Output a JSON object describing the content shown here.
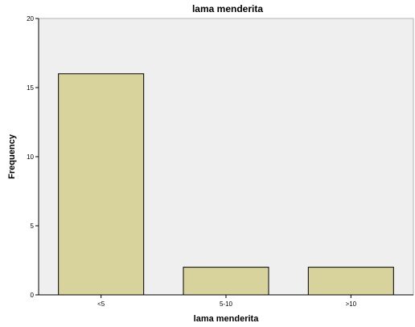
{
  "chart_data": {
    "type": "bar",
    "title": "lama menderita",
    "xlabel": "lama menderita",
    "ylabel": "Frequency",
    "categories": [
      "<5",
      "5-10",
      ">10"
    ],
    "values": [
      16,
      2,
      2
    ],
    "ylim": [
      0,
      20
    ],
    "yticks": [
      "0",
      "5",
      "10",
      "15",
      "20"
    ],
    "grid": false,
    "legend": "none",
    "colors": {
      "bar_fill": "#d8d29c",
      "bar_stroke": "#000000",
      "plot_background": "#efefef",
      "axis": "#000000"
    }
  }
}
